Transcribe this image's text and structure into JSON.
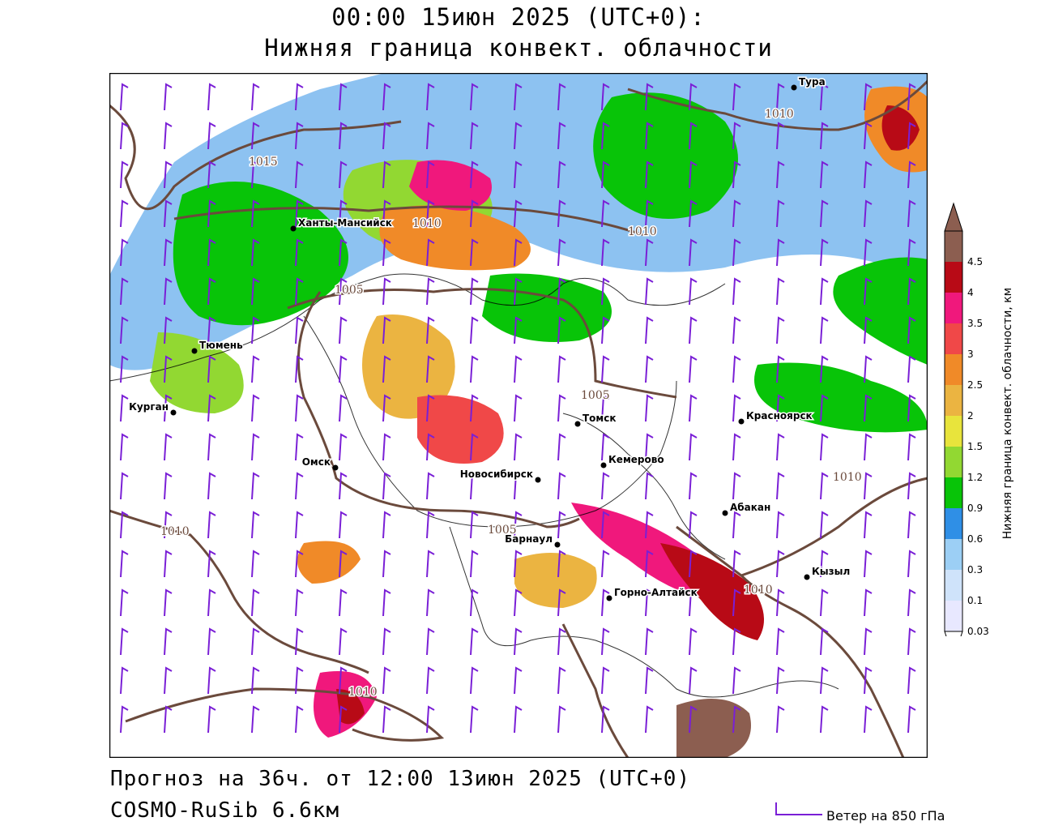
{
  "header": {
    "title_line1": "00:00 15июн 2025 (UTC+0):",
    "title_line2": "Нижняя граница конвект. облачности"
  },
  "footer": {
    "forecast": "Прогноз на 36ч. от 12:00 13июн 2025 (UTC+0)",
    "model": "COSMO-RuSib 6.6км",
    "wind_legend": "Ветер на 850 гПа"
  },
  "colorbar": {
    "title": "Нижняя граница конвект. облачности, км",
    "levels": [
      {
        "label": "0.03",
        "color": "#e8e8ff"
      },
      {
        "label": "0.1",
        "color": "#cfe3fa"
      },
      {
        "label": "0.3",
        "color": "#9ccff5"
      },
      {
        "label": "0.6",
        "color": "#2f8fe6"
      },
      {
        "label": "0.9",
        "color": "#08c408"
      },
      {
        "label": "1.2",
        "color": "#92d832"
      },
      {
        "label": "1.5",
        "color": "#e8e43c"
      },
      {
        "label": "2",
        "color": "#ebb441"
      },
      {
        "label": "2.5",
        "color": "#f08a28"
      },
      {
        "label": "3",
        "color": "#f04848"
      },
      {
        "label": "3.5",
        "color": "#f0187c"
      },
      {
        "label": "4",
        "color": "#b80a16"
      },
      {
        "label": "4.5",
        "color": "#8c5e50"
      }
    ]
  },
  "cities": [
    {
      "name": "Тура",
      "label_side": "right"
    },
    {
      "name": "Ханты-Мансийск",
      "label_side": "right"
    },
    {
      "name": "Тюмень",
      "label_side": "right"
    },
    {
      "name": "Курган",
      "label_side": "left"
    },
    {
      "name": "Омск",
      "label_side": "left"
    },
    {
      "name": "Новосибирск",
      "label_side": "left"
    },
    {
      "name": "Томск",
      "label_side": "right"
    },
    {
      "name": "Кемерово",
      "label_side": "right"
    },
    {
      "name": "Красноярск",
      "label_side": "right"
    },
    {
      "name": "Абакан",
      "label_side": "right"
    },
    {
      "name": "Барнаул",
      "label_side": "left"
    },
    {
      "name": "Горно-Алтайск",
      "label_side": "right"
    },
    {
      "name": "Кызыл",
      "label_side": "right"
    }
  ],
  "isobars": [
    {
      "label": "1015"
    },
    {
      "label": "1010"
    },
    {
      "label": "1010"
    },
    {
      "label": "1010"
    },
    {
      "label": "1005"
    },
    {
      "label": "1005"
    },
    {
      "label": "1005"
    },
    {
      "label": "1010"
    },
    {
      "label": "1010"
    },
    {
      "label": "1010"
    },
    {
      "label": "1010"
    }
  ],
  "colors": {
    "isobar": "#6b4a3c",
    "boundary": "#000000",
    "wind_barb": "#7a1fd6"
  }
}
